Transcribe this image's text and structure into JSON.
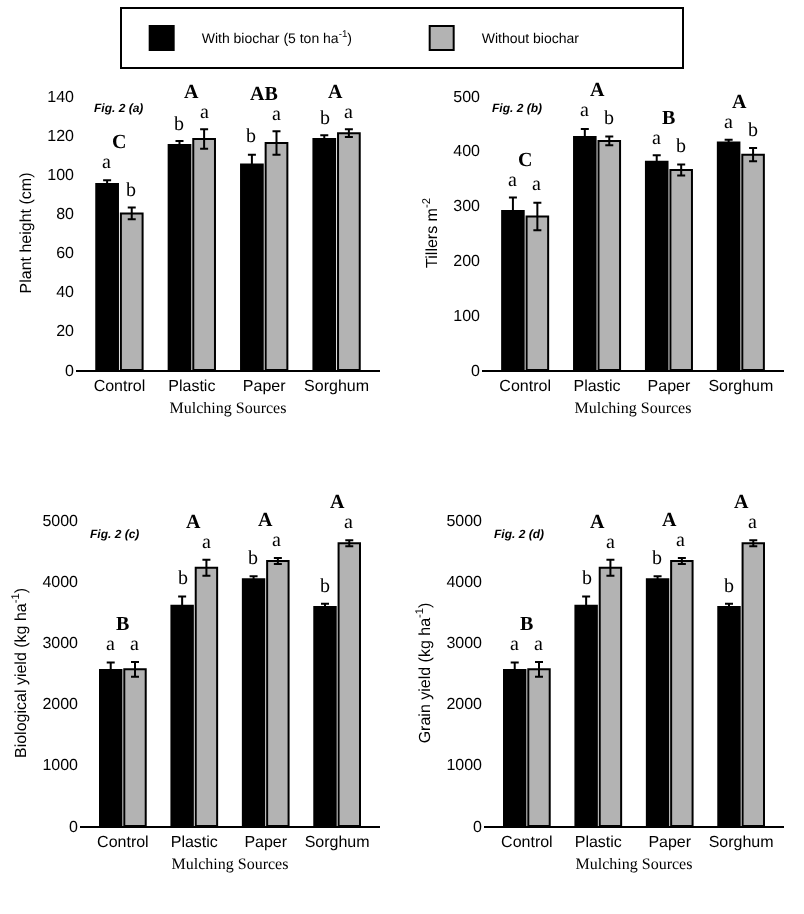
{
  "chart_data": [
    {
      "type": "bar",
      "ylabel": "Plant height (cm)",
      "xlabel": "Mulching Sources",
      "categories": [
        "Control",
        "Plastic",
        "Paper",
        "Sorghum"
      ],
      "legend": "top",
      "ylim": [
        0,
        140
      ],
      "yticks": [
        0,
        20,
        40,
        60,
        80,
        100,
        120,
        140
      ],
      "series": [
        {
          "name": "With biochar (5 ton ha$^{-1}$)",
          "color": "#000000",
          "values": [
            95,
            115,
            105,
            118
          ],
          "errors": [
            2,
            2,
            5,
            2
          ],
          "value_labels": [
            "a",
            "b",
            "b",
            "b"
          ]
        },
        {
          "name": "Without biochar",
          "color": "#b3b3b3",
          "values": [
            80,
            118,
            116,
            121
          ],
          "errors": [
            3,
            5,
            6,
            2
          ],
          "value_labels": [
            "b",
            "a",
            "a",
            "a"
          ]
        }
      ],
      "annotations": [
        "Fig. 2 (a)",
        "C",
        "A",
        "AB",
        "A"
      ]
    },
    {
      "type": "bar",
      "ylabel": "Tillers m$^{-2}$",
      "xlabel": "Mulching Sources",
      "categories": [
        "Control",
        "Plastic",
        "Paper",
        "Sorghum"
      ],
      "ylim": [
        0,
        500
      ],
      "yticks": [
        0,
        100,
        200,
        300,
        400,
        500
      ],
      "series": [
        {
          "color": "#000000",
          "values": [
            290,
            425,
            380,
            415
          ],
          "errors": [
            25,
            15,
            12,
            5
          ],
          "value_labels": [
            "a",
            "a",
            "a",
            "a"
          ]
        },
        {
          "color": "#b3b3b3",
          "values": [
            280,
            418,
            365,
            393
          ],
          "errors": [
            25,
            8,
            10,
            12
          ],
          "value_labels": [
            "a",
            "b",
            "b",
            "b"
          ]
        }
      ],
      "annotations": [
        "Fig. 2 (b)",
        "C",
        "A",
        "B",
        "A"
      ]
    },
    {
      "type": "bar",
      "ylabel": "Biological yield (kg ha$^{-1}$)",
      "xlabel": "Mulching Sources",
      "categories": [
        "Control",
        "Plastic",
        "Paper",
        "Sorghum"
      ],
      "ylim": [
        0,
        5000
      ],
      "yticks": [
        0,
        1000,
        2000,
        3000,
        4000,
        5000
      ],
      "series": [
        {
          "color": "#000000",
          "values": [
            2550,
            3600,
            4030,
            3580
          ],
          "errors": [
            120,
            150,
            50,
            50
          ],
          "value_labels": [
            "a",
            "b",
            "b",
            "b"
          ]
        },
        {
          "color": "#b3b3b3",
          "values": [
            2560,
            4220,
            4330,
            4620
          ],
          "errors": [
            120,
            130,
            50,
            50
          ],
          "value_labels": [
            "a",
            "a",
            "a",
            "a"
          ]
        }
      ],
      "annotations": [
        "Fig. 2 (c)",
        "B",
        "A",
        "A",
        "A"
      ]
    },
    {
      "type": "bar",
      "ylabel": "Grain yield (kg ha$^{-1}$)",
      "xlabel": "Mulching Sources",
      "categories": [
        "Control",
        "Plastic",
        "Paper",
        "Sorghum"
      ],
      "ylim": [
        0,
        5000
      ],
      "yticks": [
        0,
        1000,
        2000,
        3000,
        4000,
        5000
      ],
      "series": [
        {
          "color": "#000000",
          "values": [
            2550,
            3600,
            4030,
            3580
          ],
          "errors": [
            120,
            150,
            50,
            50
          ],
          "value_labels": [
            "a",
            "b",
            "b",
            "b"
          ]
        },
        {
          "color": "#b3b3b3",
          "values": [
            2560,
            4220,
            4330,
            4620
          ],
          "errors": [
            120,
            130,
            50,
            50
          ],
          "value_labels": [
            "a",
            "a",
            "a",
            "a"
          ]
        }
      ],
      "annotations": [
        "Fig. 2 (d)",
        "B",
        "A",
        "A",
        "A"
      ]
    }
  ]
}
